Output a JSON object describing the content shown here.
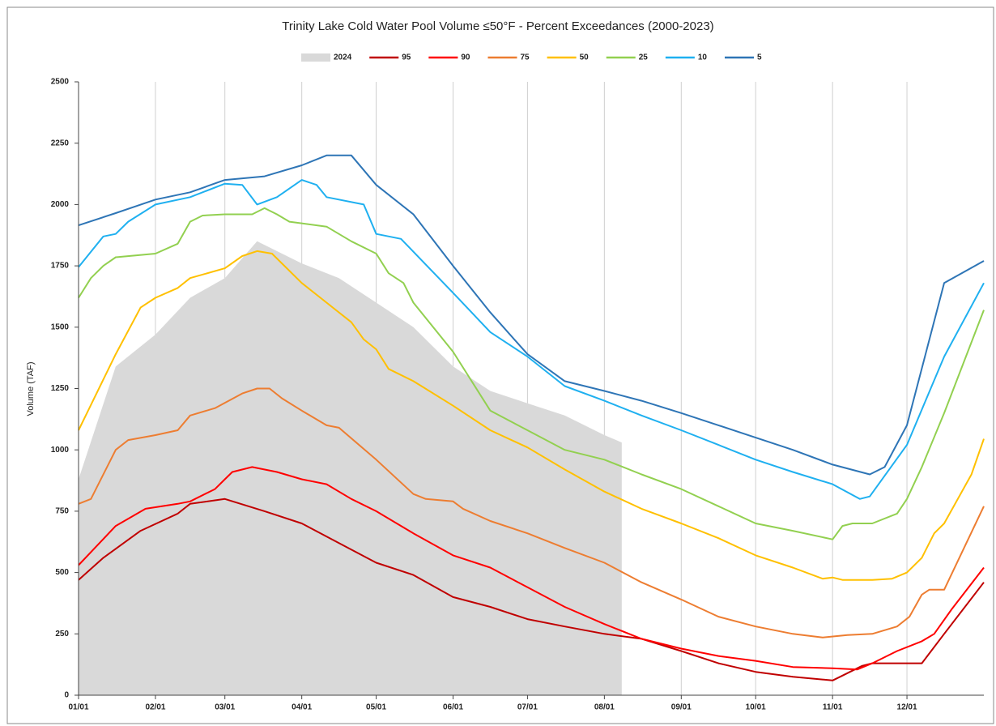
{
  "chart_data": {
    "type": "line",
    "title": "Trinity Lake Cold Water Pool Volume ≤50°F - Percent Exceedances (2000-2023)",
    "y_label": "Volume (TAF)",
    "xlim": [
      0,
      365
    ],
    "xticks": [
      {
        "value": 0,
        "label": "01/01"
      },
      {
        "value": 31,
        "label": "02/01"
      },
      {
        "value": 59,
        "label": "03/01"
      },
      {
        "value": 90,
        "label": "04/01"
      },
      {
        "value": 120,
        "label": "05/01"
      },
      {
        "value": 151,
        "label": "06/01"
      },
      {
        "value": 181,
        "label": "07/01"
      },
      {
        "value": 212,
        "label": "08/01"
      },
      {
        "value": 243,
        "label": "09/01"
      },
      {
        "value": 273,
        "label": "10/01"
      },
      {
        "value": 304,
        "label": "11/01"
      },
      {
        "value": 334,
        "label": "12/01"
      }
    ],
    "ylim": [
      0,
      2500
    ],
    "yticks": [
      0,
      250,
      500,
      750,
      1000,
      1250,
      1500,
      1750,
      2000,
      2250,
      2500
    ],
    "grid": "x",
    "legend": "top",
    "series": [
      {
        "name": "2024",
        "style": "area",
        "color": "#d9d9d9",
        "x": [
          0,
          15,
          31,
          45,
          59,
          72,
          90,
          105,
          120,
          135,
          151,
          166,
          181,
          196,
          212,
          219
        ],
        "values": [
          880,
          1340,
          1470,
          1620,
          1700,
          1850,
          1760,
          1700,
          1600,
          1500,
          1340,
          1240,
          1190,
          1140,
          1060,
          1030
        ]
      },
      {
        "name": "95",
        "color": "#c00000",
        "x": [
          0,
          10,
          25,
          40,
          45,
          59,
          75,
          90,
          105,
          120,
          135,
          151,
          166,
          181,
          196,
          212,
          227,
          243,
          258,
          273,
          288,
          304,
          308,
          312,
          316,
          320,
          340,
          349,
          365
        ],
        "values": [
          470,
          560,
          670,
          740,
          780,
          800,
          750,
          700,
          620,
          540,
          490,
          400,
          360,
          310,
          280,
          250,
          230,
          180,
          130,
          95,
          75,
          60,
          80,
          100,
          120,
          130,
          130,
          250,
          460
        ]
      },
      {
        "name": "90",
        "color": "#ff0000",
        "x": [
          0,
          15,
          27,
          40,
          45,
          55,
          59,
          62,
          70,
          80,
          90,
          100,
          110,
          120,
          135,
          151,
          166,
          181,
          196,
          212,
          227,
          243,
          258,
          273,
          288,
          304,
          314,
          320,
          330,
          340,
          345,
          352,
          365
        ],
        "values": [
          530,
          690,
          760,
          780,
          790,
          840,
          880,
          910,
          930,
          910,
          880,
          860,
          800,
          750,
          660,
          570,
          520,
          440,
          360,
          290,
          230,
          190,
          160,
          140,
          115,
          110,
          105,
          130,
          180,
          220,
          250,
          350,
          520
        ]
      },
      {
        "name": "75",
        "color": "#ed7d31",
        "x": [
          0,
          5,
          15,
          20,
          31,
          40,
          45,
          55,
          66,
          72,
          77,
          82,
          90,
          100,
          105,
          120,
          135,
          140,
          151,
          155,
          166,
          181,
          196,
          212,
          227,
          243,
          258,
          273,
          288,
          300,
          310,
          320,
          330,
          335,
          340,
          343,
          349,
          365
        ],
        "values": [
          780,
          800,
          1000,
          1040,
          1060,
          1080,
          1140,
          1170,
          1230,
          1250,
          1250,
          1210,
          1160,
          1100,
          1090,
          960,
          820,
          800,
          790,
          760,
          710,
          660,
          600,
          540,
          460,
          390,
          320,
          280,
          250,
          235,
          245,
          250,
          280,
          320,
          410,
          430,
          430,
          770
        ]
      },
      {
        "name": "50",
        "color": "#ffc000",
        "x": [
          0,
          15,
          25,
          31,
          40,
          45,
          59,
          66,
          72,
          78,
          90,
          100,
          110,
          115,
          120,
          125,
          135,
          151,
          166,
          181,
          196,
          212,
          227,
          243,
          258,
          273,
          288,
          300,
          304,
          308,
          320,
          328,
          334,
          340,
          345,
          349,
          360,
          365
        ],
        "values": [
          1080,
          1390,
          1580,
          1620,
          1660,
          1700,
          1740,
          1790,
          1810,
          1800,
          1680,
          1600,
          1520,
          1450,
          1410,
          1330,
          1280,
          1180,
          1080,
          1010,
          920,
          830,
          760,
          700,
          640,
          570,
          520,
          475,
          480,
          470,
          470,
          475,
          500,
          560,
          660,
          700,
          900,
          1045
        ]
      },
      {
        "name": "25",
        "color": "#92d050",
        "x": [
          0,
          5,
          10,
          15,
          31,
          40,
          45,
          50,
          59,
          70,
          75,
          80,
          85,
          100,
          110,
          120,
          125,
          131,
          135,
          151,
          166,
          181,
          196,
          212,
          227,
          243,
          258,
          273,
          288,
          304,
          308,
          312,
          320,
          330,
          334,
          340,
          349,
          365
        ],
        "values": [
          1620,
          1700,
          1750,
          1785,
          1800,
          1840,
          1930,
          1955,
          1960,
          1960,
          1985,
          1960,
          1930,
          1910,
          1850,
          1800,
          1720,
          1680,
          1600,
          1400,
          1160,
          1080,
          1000,
          960,
          900,
          840,
          770,
          700,
          670,
          635,
          690,
          700,
          700,
          740,
          800,
          930,
          1150,
          1570
        ]
      },
      {
        "name": "10",
        "color": "#1fb0f0",
        "x": [
          0,
          10,
          15,
          20,
          31,
          45,
          59,
          66,
          72,
          80,
          90,
          96,
          100,
          115,
          120,
          130,
          151,
          166,
          181,
          196,
          212,
          227,
          243,
          258,
          273,
          288,
          304,
          315,
          319,
          334,
          349,
          365
        ],
        "values": [
          1745,
          1870,
          1880,
          1930,
          2000,
          2030,
          2085,
          2080,
          2000,
          2030,
          2100,
          2080,
          2030,
          2000,
          1880,
          1860,
          1640,
          1480,
          1380,
          1260,
          1200,
          1140,
          1080,
          1020,
          960,
          910,
          860,
          800,
          810,
          1020,
          1380,
          1680
        ]
      },
      {
        "name": "5",
        "color": "#2e75b6",
        "x": [
          0,
          15,
          31,
          45,
          59,
          75,
          90,
          100,
          110,
          120,
          135,
          151,
          166,
          181,
          196,
          212,
          227,
          243,
          258,
          273,
          288,
          304,
          319,
          325,
          334,
          349,
          365
        ],
        "values": [
          1915,
          1965,
          2020,
          2050,
          2100,
          2115,
          2160,
          2200,
          2200,
          2080,
          1960,
          1750,
          1560,
          1390,
          1280,
          1240,
          1200,
          1150,
          1100,
          1050,
          1000,
          940,
          900,
          930,
          1100,
          1680,
          1770
        ]
      }
    ]
  }
}
